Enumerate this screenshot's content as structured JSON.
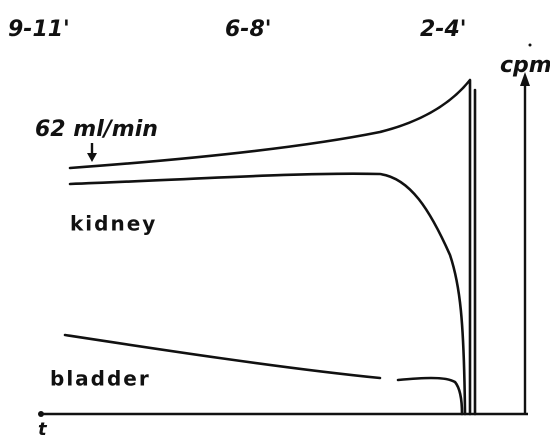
{
  "labels": {
    "time_marks": [
      "9-11'",
      "6-8'",
      "2-4'"
    ],
    "y_axis": "cpm",
    "flow": "62 ml/min",
    "kidney": "kidney",
    "bladder": "bladder",
    "x_axis": "t"
  }
}
